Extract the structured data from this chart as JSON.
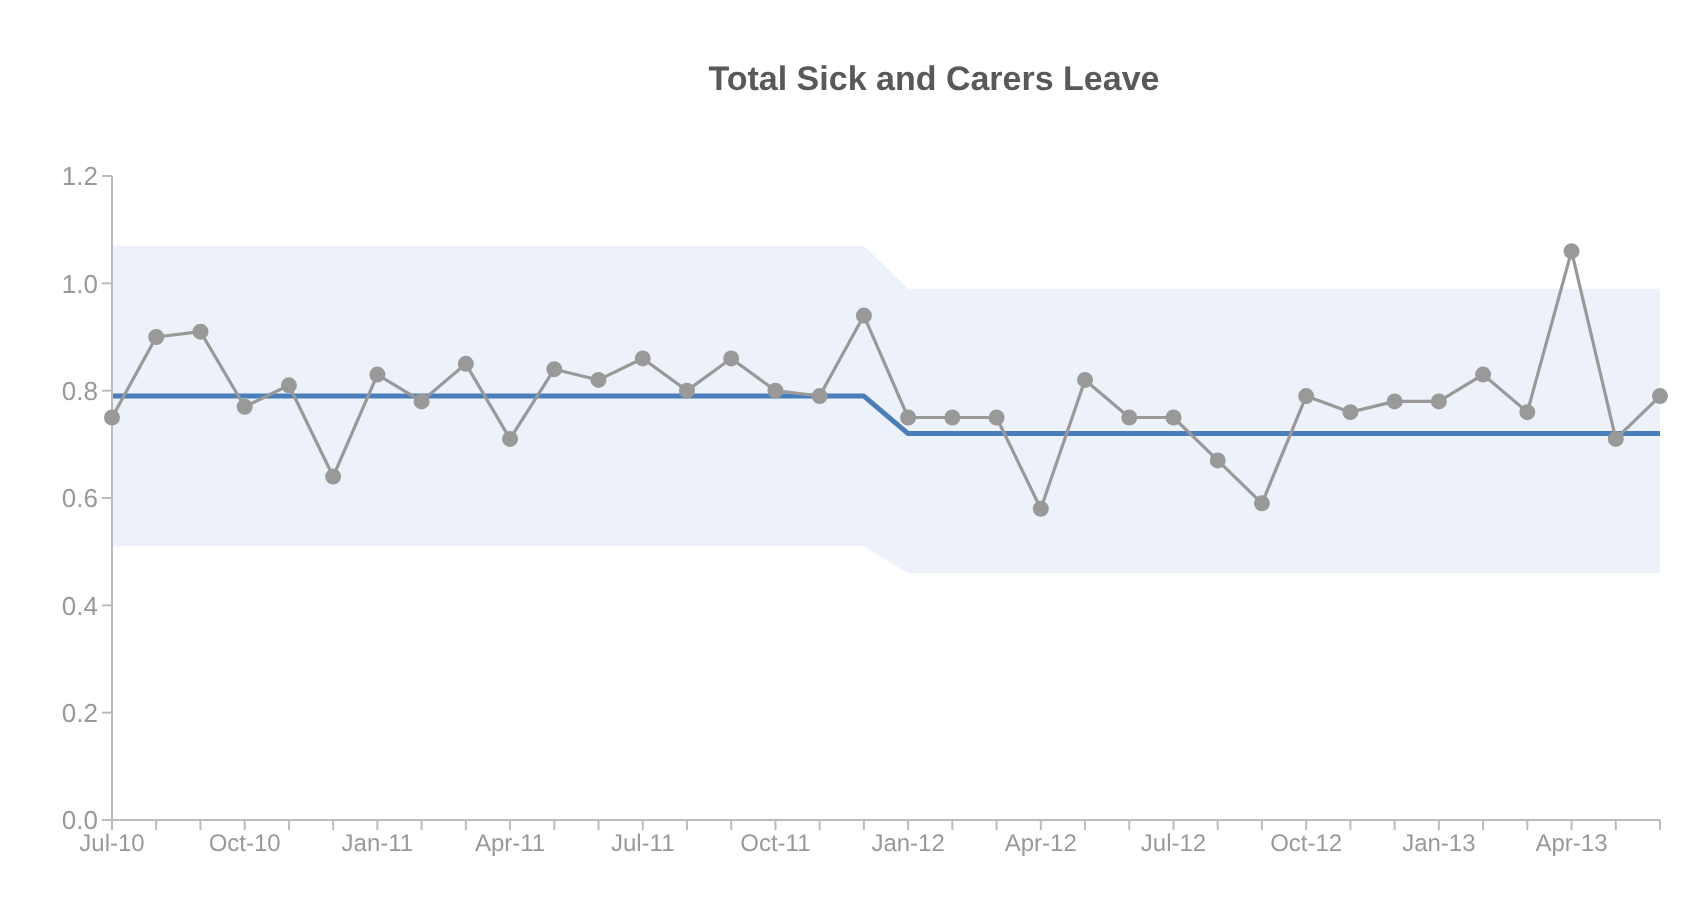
{
  "chart_data": {
    "type": "line",
    "title": "Total Sick and Carers Leave",
    "categories": [
      "Jul-10",
      null,
      null,
      "Oct-10",
      null,
      null,
      "Jan-11",
      null,
      null,
      "Apr-11",
      null,
      null,
      "Jul-11",
      null,
      null,
      "Oct-11",
      null,
      null,
      "Jan-12",
      null,
      null,
      "Apr-12",
      null,
      null,
      "Jul-12",
      null,
      null,
      "Oct-12",
      null,
      null,
      "Jan-13",
      null,
      null,
      "Apr-13",
      null,
      null
    ],
    "series": [
      {
        "color": "#4a7ebb",
        "marker": "none",
        "values": [
          0.79,
          0.79,
          0.79,
          0.79,
          0.79,
          0.79,
          0.79,
          0.79,
          0.79,
          0.79,
          0.79,
          0.79,
          0.79,
          0.79,
          0.79,
          0.79,
          0.79,
          0.79,
          0.72,
          0.72,
          0.72,
          0.72,
          0.72,
          0.72,
          0.72,
          0.72,
          0.72,
          0.72,
          0.72,
          0.72,
          0.72,
          0.72,
          0.72,
          0.72,
          0.72,
          0.72
        ],
        "lower": [
          0.51,
          0.51,
          0.51,
          0.51,
          0.51,
          0.51,
          0.51,
          0.51,
          0.51,
          0.51,
          0.51,
          0.51,
          0.51,
          0.51,
          0.51,
          0.51,
          0.51,
          0.51,
          0.46,
          0.46,
          0.46,
          0.46,
          0.46,
          0.46,
          0.46,
          0.46,
          0.46,
          0.46,
          0.46,
          0.46,
          0.46,
          0.46,
          0.46,
          0.46,
          0.46,
          0.46
        ],
        "upper": [
          1.07,
          1.07,
          1.07,
          1.07,
          1.07,
          1.07,
          1.07,
          1.07,
          1.07,
          1.07,
          1.07,
          1.07,
          1.07,
          1.07,
          1.07,
          1.07,
          1.07,
          1.07,
          0.99,
          0.99,
          0.99,
          0.99,
          0.99,
          0.99,
          0.99,
          0.99,
          0.99,
          0.99,
          0.99,
          0.99,
          0.99,
          0.99,
          0.99,
          0.99,
          0.99,
          0.99
        ]
      },
      {
        "color": "#999999",
        "marker": "circle",
        "values": [
          0.75,
          0.9,
          0.91,
          0.77,
          0.81,
          0.64,
          0.83,
          0.78,
          0.85,
          0.71,
          0.84,
          0.82,
          0.86,
          0.8,
          0.86,
          0.8,
          0.79,
          0.94,
          0.75,
          0.75,
          0.75,
          0.58,
          0.82,
          0.75,
          0.75,
          0.67,
          0.59,
          0.79,
          0.76,
          0.78,
          0.78,
          0.83,
          0.76,
          1.06,
          0.71,
          0.79
        ]
      }
    ],
    "ylim": [
      0,
      1.2
    ],
    "yticks": [
      {
        "value": 0,
        "label": "0.0"
      },
      0.2,
      0.4,
      0.6,
      0.8,
      {
        "value": 1,
        "label": "1.0"
      },
      1.2
    ],
    "grid": false
  }
}
